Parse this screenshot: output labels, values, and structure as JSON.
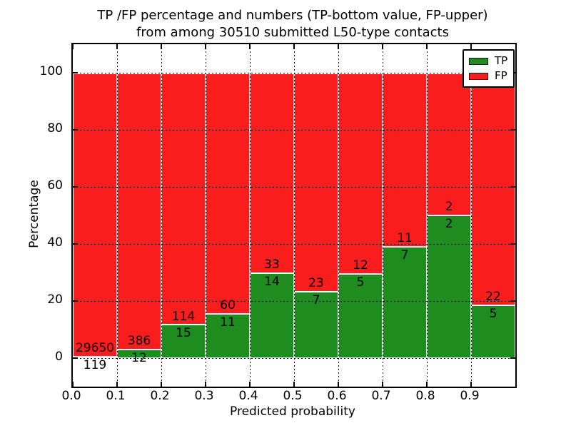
{
  "figure": {
    "title_line1": "TP /FP percentage and numbers (TP-bottom value, FP-upper)",
    "title_line2": "from among 30510 submitted L50-type contacts",
    "colors": {
      "tp": "#1e8c1e",
      "fp": "#fa1d1d",
      "frame": "#000000",
      "background": "#ffffff"
    },
    "legend": [
      {
        "label": "TP",
        "color": "#1e8c1e"
      },
      {
        "label": "FP",
        "color": "#fa1d1d"
      }
    ]
  },
  "chart_data": {
    "type": "bar",
    "subtype": "stacked-percentage-histogram",
    "title": "TP /FP percentage and numbers (TP-bottom value, FP-upper) from among 30510 submitted L50-type contacts",
    "xlabel": "Predicted probability",
    "ylabel": "Percentage",
    "xlim": [
      0.0,
      1.0
    ],
    "ylim": [
      -10,
      110
    ],
    "bin_width": 0.1,
    "bin_starts": [
      0.0,
      0.1,
      0.2,
      0.3,
      0.4,
      0.5,
      0.6,
      0.7,
      0.8,
      0.9
    ],
    "xticks": [
      "0.0",
      "0.1",
      "0.2",
      "0.3",
      "0.4",
      "0.5",
      "0.6",
      "0.7",
      "0.8",
      "0.9"
    ],
    "yticks": [
      0,
      20,
      40,
      60,
      80,
      100
    ],
    "grid": "dotted",
    "legend_position": "upper-right",
    "series": [
      {
        "name": "TP",
        "color": "#1e8c1e",
        "counts": [
          119,
          12,
          15,
          11,
          14,
          7,
          5,
          7,
          2,
          5
        ]
      },
      {
        "name": "FP",
        "color": "#fa1d1d",
        "counts": [
          29650,
          386,
          114,
          60,
          33,
          23,
          12,
          11,
          2,
          22
        ]
      }
    ],
    "tp_percent_of_bin": [
      0.4,
      3.0,
      11.6,
      15.5,
      29.8,
      23.3,
      29.4,
      38.9,
      50.0,
      18.5
    ],
    "total_contacts": 30510
  }
}
